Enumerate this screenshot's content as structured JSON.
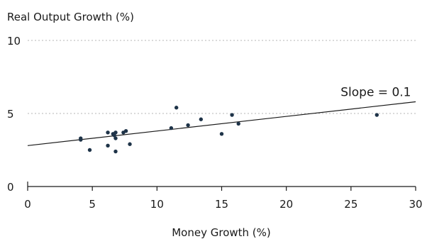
{
  "chart_data": {
    "type": "scatter",
    "ylabel": "Real Output Growth (%)",
    "xlabel": "Money Growth (%)",
    "xlim": [
      0,
      30
    ],
    "ylim": [
      0,
      10
    ],
    "x_ticks": [
      0,
      5,
      10,
      15,
      20,
      25,
      30
    ],
    "y_ticks": [
      0,
      5,
      10
    ],
    "grid": "horizontal dotted at 5 and 10",
    "series": [
      {
        "points": [
          {
            "x": 4.1,
            "y": 3.3
          },
          {
            "x": 4.1,
            "y": 3.2
          },
          {
            "x": 4.8,
            "y": 2.5
          },
          {
            "x": 6.2,
            "y": 3.7
          },
          {
            "x": 6.2,
            "y": 2.8
          },
          {
            "x": 6.6,
            "y": 3.6
          },
          {
            "x": 6.7,
            "y": 3.5
          },
          {
            "x": 6.8,
            "y": 3.3
          },
          {
            "x": 6.8,
            "y": 3.7
          },
          {
            "x": 6.8,
            "y": 2.4
          },
          {
            "x": 7.4,
            "y": 3.7
          },
          {
            "x": 7.6,
            "y": 3.8
          },
          {
            "x": 7.9,
            "y": 2.9
          },
          {
            "x": 11.1,
            "y": 4.0
          },
          {
            "x": 11.5,
            "y": 5.4
          },
          {
            "x": 12.4,
            "y": 4.2
          },
          {
            "x": 13.4,
            "y": 4.6
          },
          {
            "x": 15.0,
            "y": 3.6
          },
          {
            "x": 15.8,
            "y": 4.9
          },
          {
            "x": 16.3,
            "y": 4.3
          },
          {
            "x": 27.0,
            "y": 4.9
          }
        ]
      }
    ],
    "trendline": {
      "intercept": 2.8,
      "slope": 0.1
    },
    "annotations": [
      {
        "text": "Slope = 0.1",
        "x": 24.2,
        "y": 6.2
      }
    ]
  }
}
